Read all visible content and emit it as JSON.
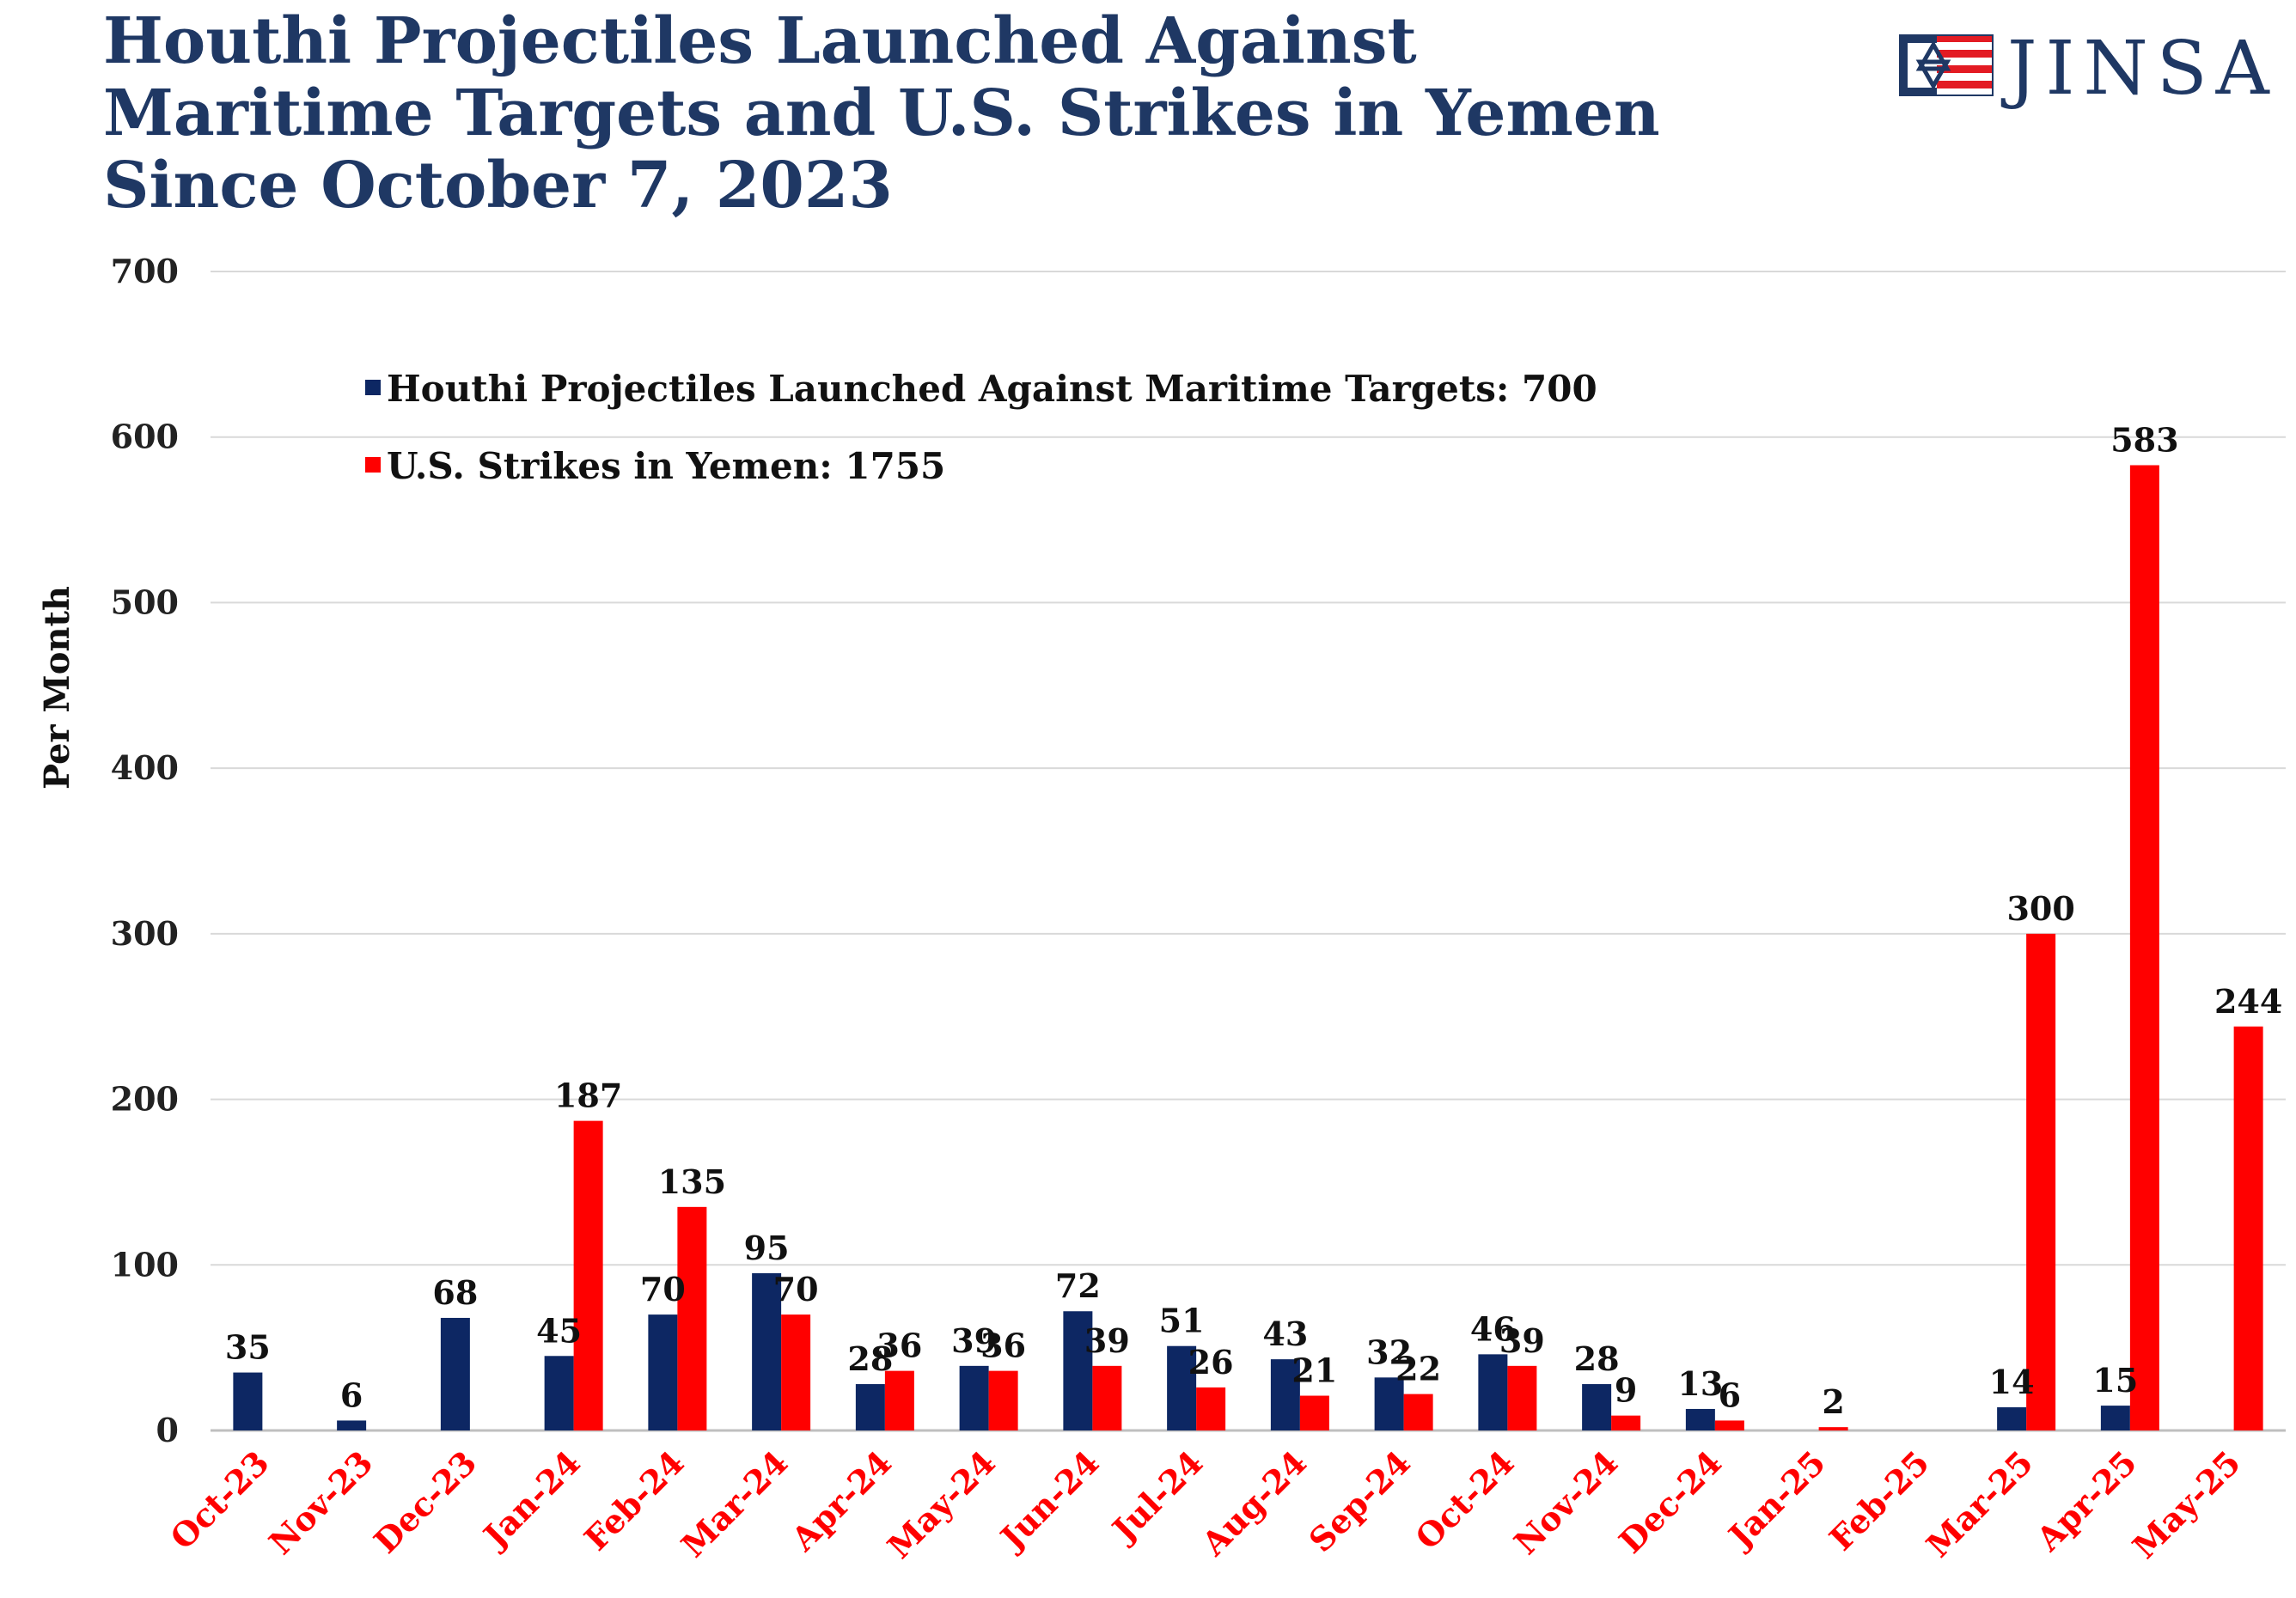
{
  "brand": {
    "name": "JINSA",
    "colors": {
      "navy": "#0d2763",
      "red": "#ff0000",
      "title": "#1f3864"
    }
  },
  "chart_data": {
    "type": "bar",
    "title": [
      "Houthi Projectiles Launched Against",
      "Maritime Targets and U.S. Strikes in Yemen",
      "Since October 7, 2023"
    ],
    "xlabel": "",
    "ylabel": "Per Month",
    "ylim": [
      0,
      700
    ],
    "yticks": [
      0,
      100,
      200,
      300,
      400,
      500,
      600,
      700
    ],
    "grid": true,
    "legend_position": "top-left",
    "categories": [
      "Oct-23",
      "Nov-23",
      "Dec-23",
      "Jan-24",
      "Feb-24",
      "Mar-24",
      "Apr-24",
      "May-24",
      "Jun-24",
      "Jul-24",
      "Aug-24",
      "Sep-24",
      "Oct-24",
      "Nov-24",
      "Dec-24",
      "Jan-25",
      "Feb-25",
      "Mar-25",
      "Apr-25",
      "May-25"
    ],
    "series": [
      {
        "name": "Houthi Projectiles Launched Against Maritime Targets: 700",
        "color": "#0d2763",
        "values": [
          35,
          6,
          68,
          45,
          70,
          95,
          28,
          39,
          72,
          51,
          43,
          32,
          46,
          28,
          13,
          null,
          null,
          14,
          15,
          null
        ]
      },
      {
        "name": "U.S. Strikes in Yemen: 1755",
        "color": "#ff0000",
        "values": [
          null,
          null,
          null,
          187,
          135,
          70,
          36,
          36,
          39,
          26,
          21,
          22,
          39,
          9,
          6,
          2,
          null,
          300,
          583,
          244
        ]
      }
    ]
  }
}
